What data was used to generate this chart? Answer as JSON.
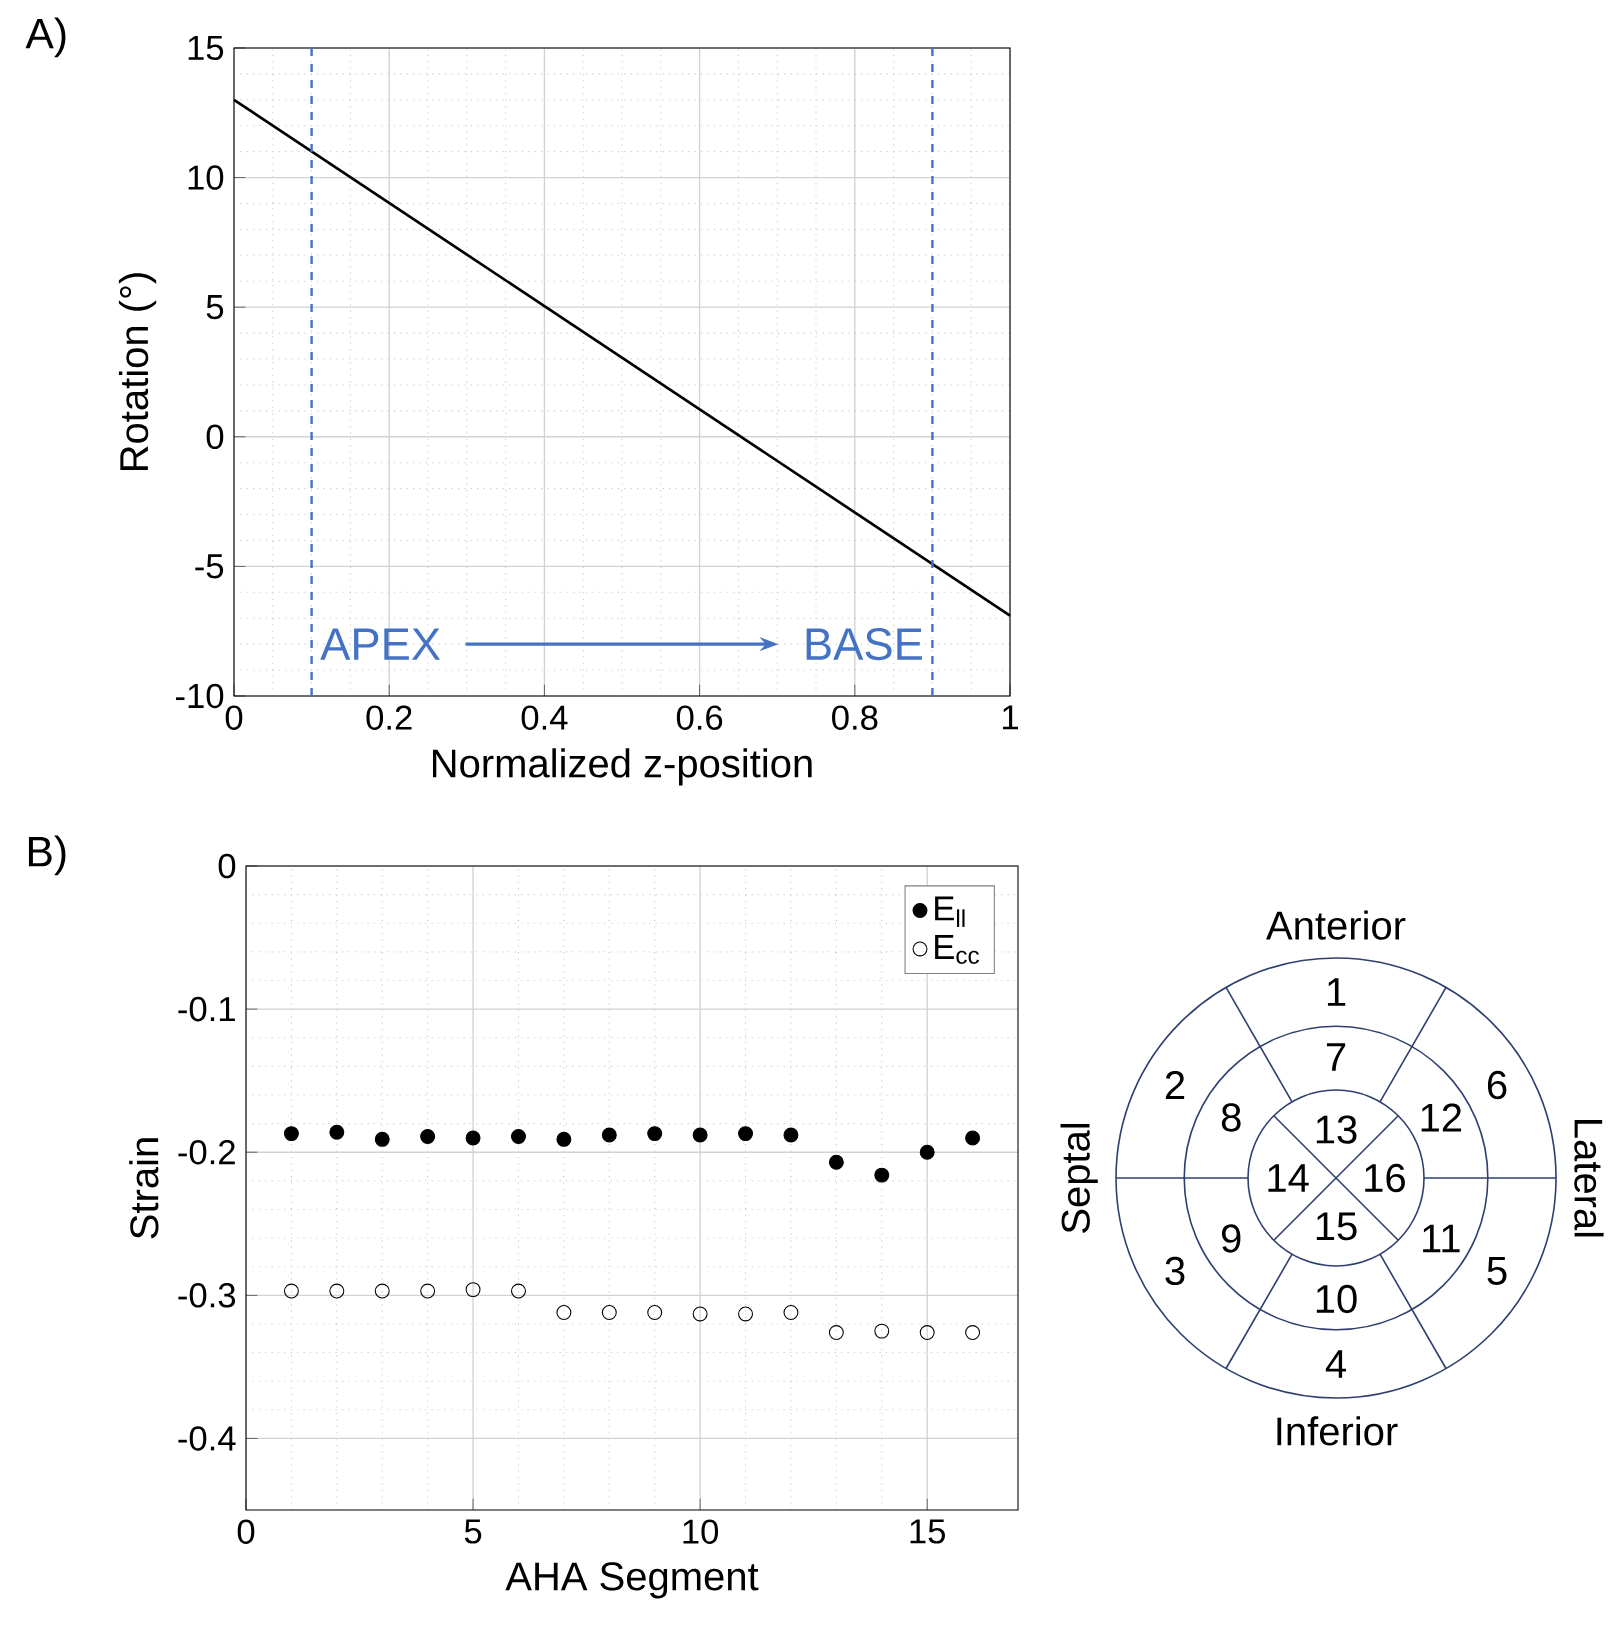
{
  "chart_data": [
    {
      "type": "line",
      "xlabel": "Normalized z-position",
      "ylabel": "Rotation (°)",
      "annotations": [
        "A)"
      ],
      "xlim": [
        0,
        1
      ],
      "ylim": [
        -10,
        15
      ],
      "xticks": [
        0,
        0.2,
        0.4,
        0.6,
        0.8,
        1
      ],
      "yticks": [
        -10,
        -5,
        0,
        5,
        10,
        15
      ],
      "grid": true,
      "series": [
        {
          "color": "#000000",
          "x": [
            0,
            1
          ],
          "values": [
            13,
            -6.9
          ]
        }
      ],
      "ref_lines": [
        {
          "axis": "x",
          "value": 0.1,
          "label": "APEX",
          "color": "#4472c4",
          "line_style": "dashed"
        },
        {
          "axis": "x",
          "value": 0.9,
          "label": "BASE",
          "color": "#4472c4",
          "line_style": "dashed"
        }
      ]
    },
    {
      "type": "scatter",
      "xlabel": "AHA Segment",
      "ylabel": "Strain",
      "annotations": [
        "B)"
      ],
      "xlim": [
        0,
        17
      ],
      "ylim": [
        -0.45,
        0
      ],
      "xticks": [
        0,
        5,
        10,
        15
      ],
      "yticks": [
        0,
        -0.1,
        -0.2,
        -0.3,
        -0.4
      ],
      "grid": true,
      "legend": "top right",
      "marker": "circle",
      "x": [
        1,
        2,
        3,
        4,
        5,
        6,
        7,
        8,
        9,
        10,
        11,
        12,
        13,
        14,
        15,
        16
      ],
      "series": [
        {
          "name": "E$_{ll}$",
          "color": "#000000",
          "values": [
            -0.187,
            -0.186,
            -0.191,
            -0.189,
            -0.19,
            -0.189,
            -0.191,
            -0.188,
            -0.187,
            -0.188,
            -0.187,
            -0.188,
            -0.207,
            -0.216,
            -0.2,
            -0.19
          ]
        },
        {
          "name": "E$_{cc}$",
          "color": "#000000",
          "values": [
            -0.297,
            -0.297,
            -0.297,
            -0.297,
            -0.296,
            -0.297,
            -0.312,
            -0.312,
            -0.312,
            -0.313,
            -0.313,
            -0.312,
            -0.326,
            -0.325,
            -0.326,
            -0.326
          ]
        }
      ]
    },
    {
      "type": "other",
      "color": "#2f3f6f",
      "categories": [
        "1",
        "2",
        "3",
        "4",
        "5",
        "6",
        "7",
        "8",
        "9",
        "10",
        "11",
        "12",
        "13",
        "14",
        "15",
        "16"
      ],
      "annotations": [
        "Anterior",
        "Septal",
        "Inferior",
        "Lateral"
      ]
    }
  ]
}
